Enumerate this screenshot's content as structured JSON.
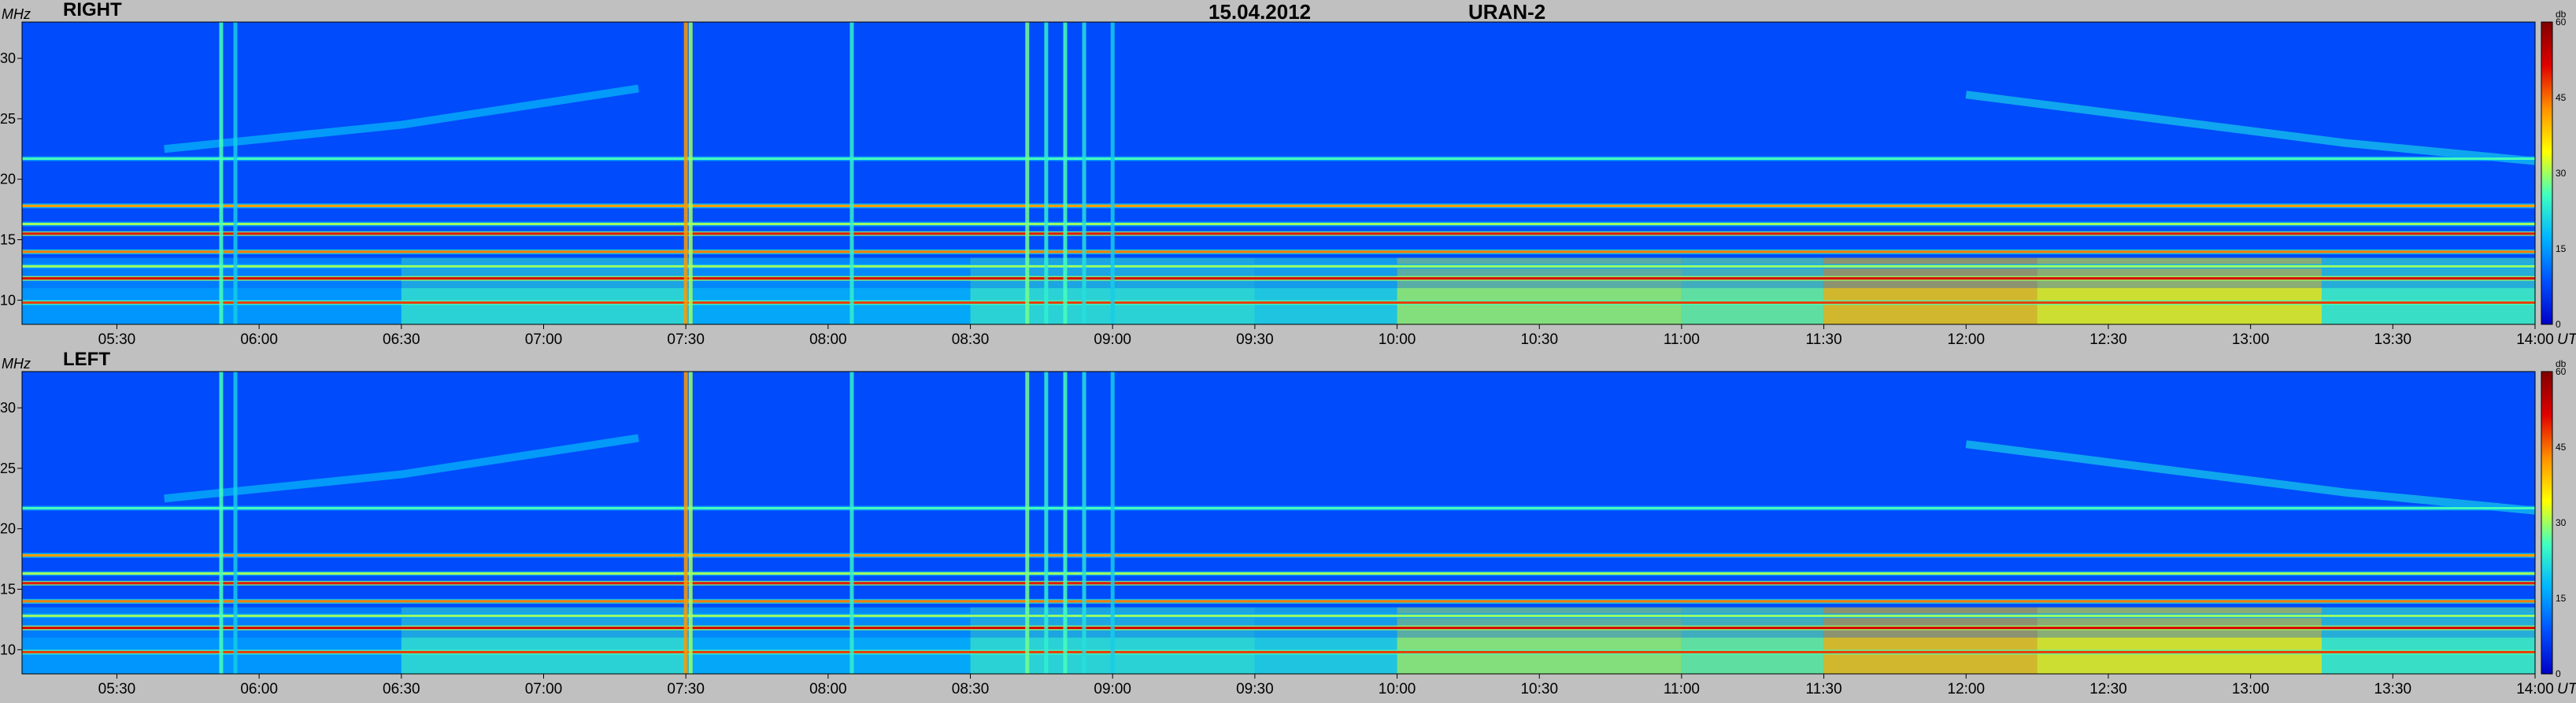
{
  "header": {
    "date": "15.04.2012",
    "instrument": "URAN-2"
  },
  "chart_data": {
    "type": "heatmap",
    "x_unit_label": "UT",
    "y_unit_label": "MHz",
    "colorbar_label": "db",
    "colorbar_ticks": [
      0,
      15,
      30,
      45,
      60
    ],
    "colorbar_range": [
      0,
      60
    ],
    "xlim": [
      "05:10",
      "14:00"
    ],
    "ylim": [
      8,
      33
    ],
    "y_ticks": [
      10,
      15,
      20,
      25,
      30
    ],
    "x_ticks": [
      "05:30",
      "06:00",
      "06:30",
      "07:00",
      "07:30",
      "08:00",
      "08:30",
      "09:00",
      "09:30",
      "10:00",
      "10:30",
      "11:00",
      "11:30",
      "12:00",
      "12:30",
      "13:00",
      "13:30",
      "14:00"
    ],
    "colormap": [
      "#0000c8",
      "#0050ff",
      "#00b4ff",
      "#40ffc0",
      "#ffff00",
      "#ff9000",
      "#e00000",
      "#800000"
    ],
    "panels": [
      {
        "name": "RIGHT",
        "background_db": 8,
        "horizontal_bands": [
          {
            "freq": 9.8,
            "db": 48
          },
          {
            "freq": 11.8,
            "db": 52
          },
          {
            "freq": 12.8,
            "db": 30
          },
          {
            "freq": 14.0,
            "db": 44
          },
          {
            "freq": 15.5,
            "db": 50
          },
          {
            "freq": 16.3,
            "db": 30
          },
          {
            "freq": 17.8,
            "db": 42
          },
          {
            "freq": 21.7,
            "db": 26
          }
        ],
        "low_band_activity": [
          {
            "start": "05:10",
            "end": "06:30",
            "db": 16
          },
          {
            "start": "06:30",
            "end": "07:30",
            "db": 24
          },
          {
            "start": "07:30",
            "end": "08:30",
            "db": 18
          },
          {
            "start": "08:30",
            "end": "09:30",
            "db": 24
          },
          {
            "start": "09:30",
            "end": "10:00",
            "db": 22
          },
          {
            "start": "10:00",
            "end": "11:00",
            "db": 30
          },
          {
            "start": "11:00",
            "end": "11:30",
            "db": 28
          },
          {
            "start": "11:30",
            "end": "12:15",
            "db": 38
          },
          {
            "start": "12:15",
            "end": "13:15",
            "db": 34
          },
          {
            "start": "13:15",
            "end": "14:00",
            "db": 26
          }
        ],
        "vertical_bursts": [
          {
            "time": "05:52",
            "db": 26
          },
          {
            "time": "05:55",
            "db": 20
          },
          {
            "time": "07:30",
            "db": 42
          },
          {
            "time": "07:31",
            "db": 30
          },
          {
            "time": "08:05",
            "db": 24
          },
          {
            "time": "08:42",
            "db": 28
          },
          {
            "time": "08:46",
            "db": 24
          },
          {
            "time": "08:50",
            "db": 26
          },
          {
            "time": "08:54",
            "db": 22
          },
          {
            "time": "09:00",
            "db": 20
          }
        ],
        "drifting_bands": [
          {
            "points": [
              [
                "05:40",
                22.5
              ],
              [
                "06:30",
                24.5
              ],
              [
                "07:20",
                27.5
              ]
            ],
            "db": 18
          },
          {
            "points": [
              [
                "12:00",
                27.0
              ],
              [
                "12:40",
                25.0
              ],
              [
                "13:20",
                23.0
              ],
              [
                "14:00",
                21.5
              ]
            ],
            "db": 20
          }
        ]
      },
      {
        "name": "LEFT",
        "background_db": 8,
        "horizontal_bands": [
          {
            "freq": 9.8,
            "db": 48
          },
          {
            "freq": 11.8,
            "db": 52
          },
          {
            "freq": 12.8,
            "db": 30
          },
          {
            "freq": 14.0,
            "db": 44
          },
          {
            "freq": 15.5,
            "db": 50
          },
          {
            "freq": 16.3,
            "db": 30
          },
          {
            "freq": 17.8,
            "db": 42
          },
          {
            "freq": 21.7,
            "db": 26
          }
        ],
        "low_band_activity": [
          {
            "start": "05:10",
            "end": "06:30",
            "db": 16
          },
          {
            "start": "06:30",
            "end": "07:30",
            "db": 24
          },
          {
            "start": "07:30",
            "end": "08:30",
            "db": 18
          },
          {
            "start": "08:30",
            "end": "09:30",
            "db": 24
          },
          {
            "start": "09:30",
            "end": "10:00",
            "db": 22
          },
          {
            "start": "10:00",
            "end": "11:00",
            "db": 30
          },
          {
            "start": "11:00",
            "end": "11:30",
            "db": 28
          },
          {
            "start": "11:30",
            "end": "12:15",
            "db": 38
          },
          {
            "start": "12:15",
            "end": "13:15",
            "db": 34
          },
          {
            "start": "13:15",
            "end": "14:00",
            "db": 26
          }
        ],
        "vertical_bursts": [
          {
            "time": "05:52",
            "db": 26
          },
          {
            "time": "05:55",
            "db": 20
          },
          {
            "time": "07:30",
            "db": 42
          },
          {
            "time": "07:31",
            "db": 30
          },
          {
            "time": "08:05",
            "db": 24
          },
          {
            "time": "08:42",
            "db": 28
          },
          {
            "time": "08:46",
            "db": 24
          },
          {
            "time": "08:50",
            "db": 26
          },
          {
            "time": "08:54",
            "db": 22
          },
          {
            "time": "09:00",
            "db": 20
          }
        ],
        "drifting_bands": [
          {
            "points": [
              [
                "05:40",
                22.5
              ],
              [
                "06:30",
                24.5
              ],
              [
                "07:20",
                27.5
              ]
            ],
            "db": 18
          },
          {
            "points": [
              [
                "12:00",
                27.0
              ],
              [
                "12:40",
                25.0
              ],
              [
                "13:20",
                23.0
              ],
              [
                "14:00",
                21.5
              ]
            ],
            "db": 20
          }
        ]
      }
    ]
  }
}
